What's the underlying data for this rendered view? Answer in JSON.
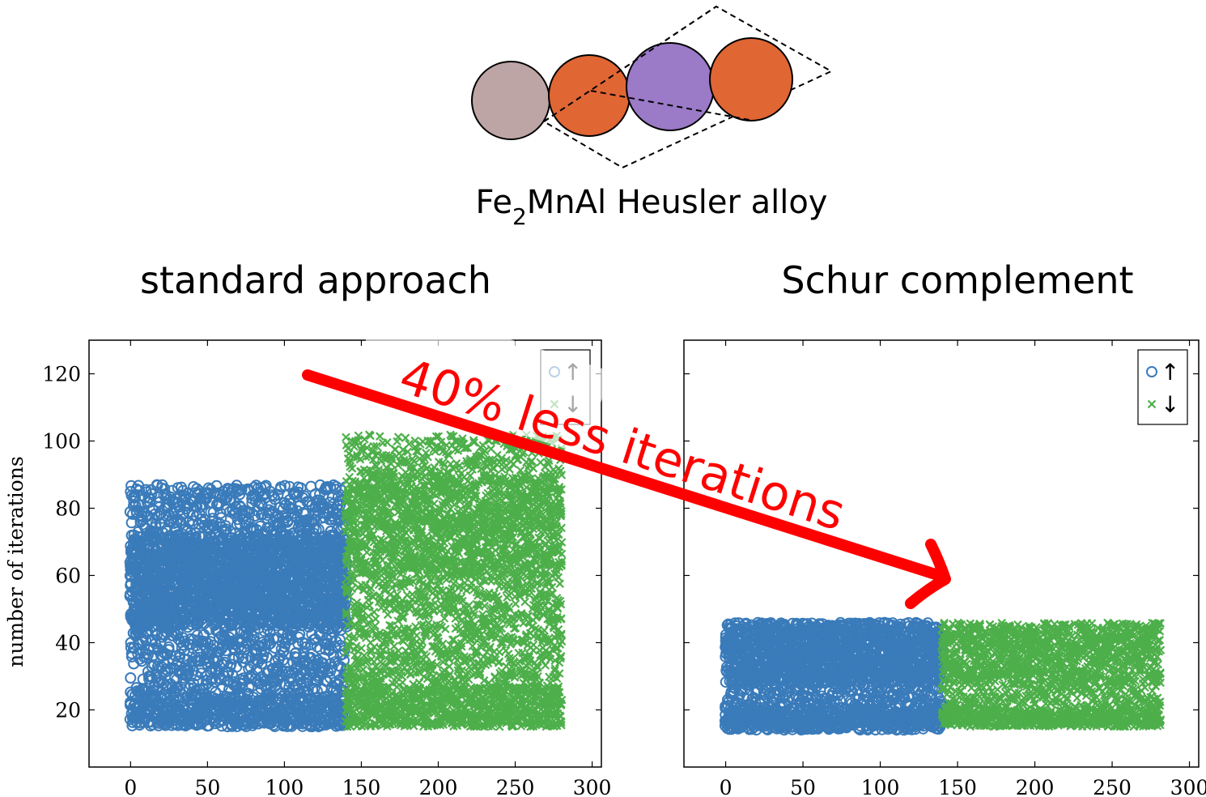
{
  "header": {
    "alloy_label_pre": "Fe",
    "alloy_label_sub": "2",
    "alloy_label_post": "MnAl Heusler alloy"
  },
  "atoms": [
    {
      "element": "Al",
      "color": "#bea5a5"
    },
    {
      "element": "Fe",
      "color": "#e06634"
    },
    {
      "element": "Mn",
      "color": "#9b7ac7"
    },
    {
      "element": "Fe",
      "color": "#e06634"
    }
  ],
  "annotation": {
    "text": "40% less iterations",
    "color": "#ff0000"
  },
  "chart_data": [
    {
      "type": "scatter",
      "title": "standard approach",
      "xlabel": "",
      "ylabel": "number of iterations",
      "xlim": [
        -27,
        306
      ],
      "ylim": [
        3,
        130
      ],
      "xticks": [
        0,
        50,
        100,
        150,
        200,
        250,
        300
      ],
      "yticks": [
        20,
        40,
        60,
        80,
        100,
        120
      ],
      "legend": "top-right",
      "series": [
        {
          "name": "↑",
          "marker": "circle",
          "color": "#3a7bba",
          "x_range": [
            0,
            140
          ],
          "bands": [
            [
              15,
              24,
              0.55
            ],
            [
              24,
              45,
              0.2
            ],
            [
              45,
              72,
              0.6
            ],
            [
              72,
              87,
              0.25
            ]
          ]
        },
        {
          "name": "↓",
          "marker": "x",
          "color": "#4daf4a",
          "x_range": [
            140,
            280
          ],
          "bands": [
            [
              15,
              27,
              0.6
            ],
            [
              27,
              60,
              0.25
            ],
            [
              60,
              90,
              0.4
            ],
            [
              90,
              102,
              0.2
            ]
          ]
        }
      ]
    },
    {
      "type": "scatter",
      "title": "Schur complement",
      "xlabel": "",
      "ylabel": "",
      "xlim": [
        -27,
        306
      ],
      "ylim": [
        3,
        130
      ],
      "xticks": [
        0,
        50,
        100,
        150,
        200,
        250,
        300
      ],
      "yticks": [
        20,
        40,
        60,
        80,
        100,
        120
      ],
      "legend": "top-right",
      "series": [
        {
          "name": "↑",
          "marker": "circle",
          "color": "#3a7bba",
          "x_range": [
            0,
            140
          ],
          "bands": [
            [
              14,
              20,
              0.8
            ],
            [
              20,
              28,
              0.3
            ],
            [
              28,
              46,
              0.6
            ]
          ]
        },
        {
          "name": "↓",
          "marker": "x",
          "color": "#4daf4a",
          "x_range": [
            140,
            281
          ],
          "bands": [
            [
              15,
              20,
              0.8
            ],
            [
              20,
              28,
              0.3
            ],
            [
              28,
              46,
              0.5
            ]
          ]
        }
      ]
    }
  ]
}
